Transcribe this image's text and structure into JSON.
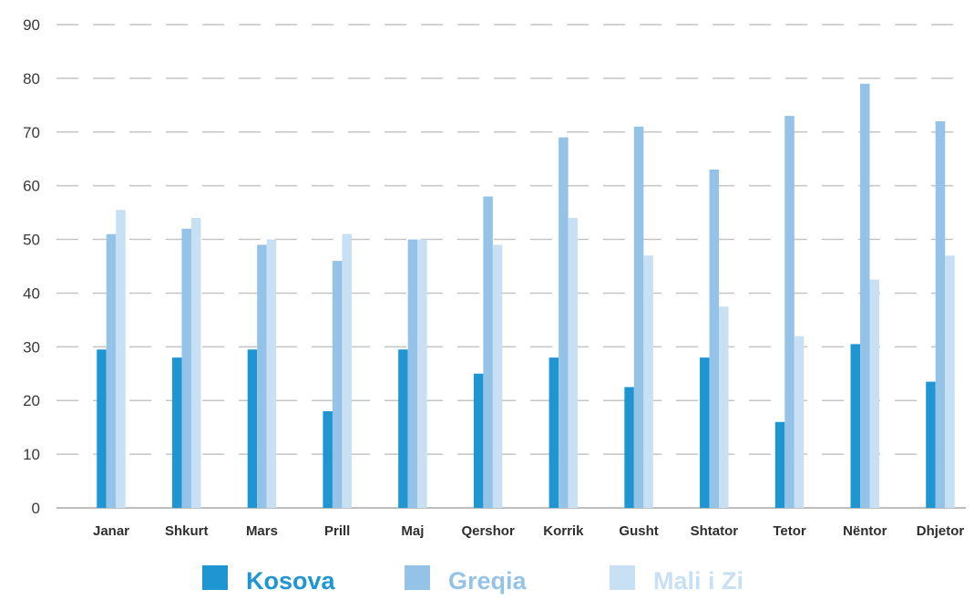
{
  "chart_data": {
    "type": "bar",
    "categories": [
      "Janar",
      "Shkurt",
      "Mars",
      "Prill",
      "Maj",
      "Qershor",
      "Korrik",
      "Gusht",
      "Shtator",
      "Tetor",
      "Nëntor",
      "Dhjetor"
    ],
    "series": [
      {
        "name": "Kosova",
        "color": "#1f95d1",
        "values": [
          29.5,
          28,
          29.5,
          18,
          29.5,
          25,
          28,
          22.5,
          28,
          16,
          30.5,
          23.5
        ]
      },
      {
        "name": "Greqia",
        "color": "#95c3e8",
        "values": [
          51,
          52,
          49,
          46,
          50,
          58,
          69,
          71,
          63,
          73,
          79,
          72
        ]
      },
      {
        "name": "Mali i Zi",
        "color": "#c8e0f3",
        "values": [
          55.5,
          54,
          50,
          51,
          50,
          49,
          54,
          47,
          37.5,
          32,
          42.5,
          47
        ]
      }
    ],
    "yticks": [
      0,
      10,
      20,
      30,
      40,
      50,
      60,
      70,
      80,
      90
    ],
    "ylim": [
      0,
      90
    ],
    "grid": true,
    "legend": "bottom",
    "title": "",
    "xlabel": "",
    "ylabel": ""
  }
}
